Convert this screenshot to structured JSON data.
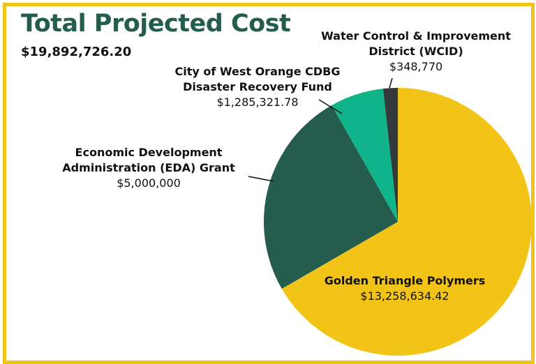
{
  "chart_data": {
    "type": "pie",
    "title": "Total Projected Cost",
    "subtitle": "$19,892,726.20",
    "slices": [
      {
        "name": "Golden Triangle Polymers",
        "name_lines": [
          "Golden Triangle Polymers"
        ],
        "value": 13258634.42,
        "value_label": "$13,258,634.42",
        "color": "#f2c418"
      },
      {
        "name": "Economic Development Administration (EDA) Grant",
        "name_lines": [
          "Economic Development",
          "Administration (EDA) Grant"
        ],
        "value": 5000000,
        "value_label": "$5,000,000",
        "color": "#245c4e"
      },
      {
        "name": "City of West Orange CDBG Disaster Recovery Fund",
        "name_lines": [
          "City of West Orange CDBG",
          "Disaster Recovery Fund"
        ],
        "value": 1285321.78,
        "value_label": "$1,285,321.78",
        "color": "#11b48a"
      },
      {
        "name": "Water Control & Improvement District (WCID)",
        "name_lines": [
          "Water Control & Improvement",
          "District (WCID)"
        ],
        "value": 348770,
        "value_label": "$348,770",
        "color": "#333a3a"
      }
    ]
  }
}
